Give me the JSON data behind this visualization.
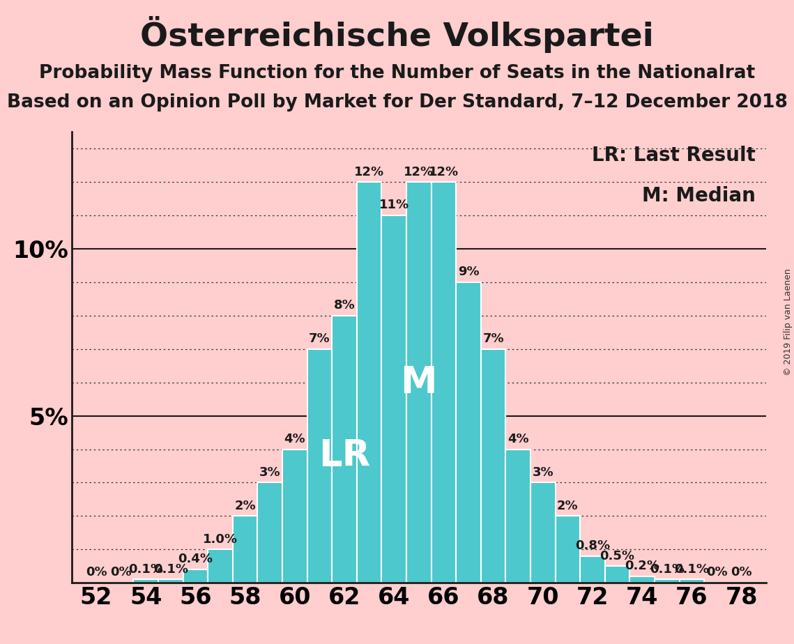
{
  "title": "Österreichische Volkspartei",
  "subtitle1": "Probability Mass Function for the Number of Seats in the Nationalrat",
  "subtitle2": "Based on an Opinion Poll by Market for Der Standard, 7–12 December 2018",
  "copyright": "© 2019 Filip van Laenen",
  "seats": [
    52,
    53,
    54,
    55,
    56,
    57,
    58,
    59,
    60,
    61,
    62,
    63,
    64,
    65,
    66,
    67,
    68,
    69,
    70,
    71,
    72,
    73,
    74,
    75,
    76,
    77,
    78
  ],
  "probabilities": [
    0.0,
    0.0,
    0.1,
    0.1,
    0.4,
    1.0,
    2.0,
    3.0,
    4.0,
    7.0,
    8.0,
    12.0,
    11.0,
    12.0,
    12.0,
    9.0,
    7.0,
    4.0,
    3.0,
    2.0,
    0.8,
    0.5,
    0.2,
    0.1,
    0.1,
    0.0,
    0.0
  ],
  "bar_labels": [
    "0%",
    "0%",
    "0.1%",
    "0.1%",
    "0.4%",
    "1.0%",
    "2%",
    "3%",
    "4%",
    "7%",
    "8%",
    "12%",
    "11%",
    "12%",
    "12%",
    "9%",
    "7%",
    "4%",
    "3%",
    "2%",
    "0.8%",
    "0.5%",
    "0.2%",
    "0.1%",
    "0.1%",
    "0%",
    "0%"
  ],
  "bar_color": "#4DC8CC",
  "background_color": "#FFCECE",
  "bar_edge_color": "white",
  "last_result_seat": 62,
  "median_seat": 65,
  "lr_label": "LR",
  "m_label": "M",
  "legend_lr": "LR: Last Result",
  "legend_m": "M: Median",
  "ylim": [
    0,
    13.5
  ],
  "xlim": [
    51,
    79
  ],
  "title_fontsize": 34,
  "subtitle_fontsize": 19,
  "bar_label_fontsize": 13,
  "axis_tick_fontsize": 24,
  "legend_fontsize": 20,
  "lr_m_label_fontsize": 38,
  "copyright_fontsize": 9
}
